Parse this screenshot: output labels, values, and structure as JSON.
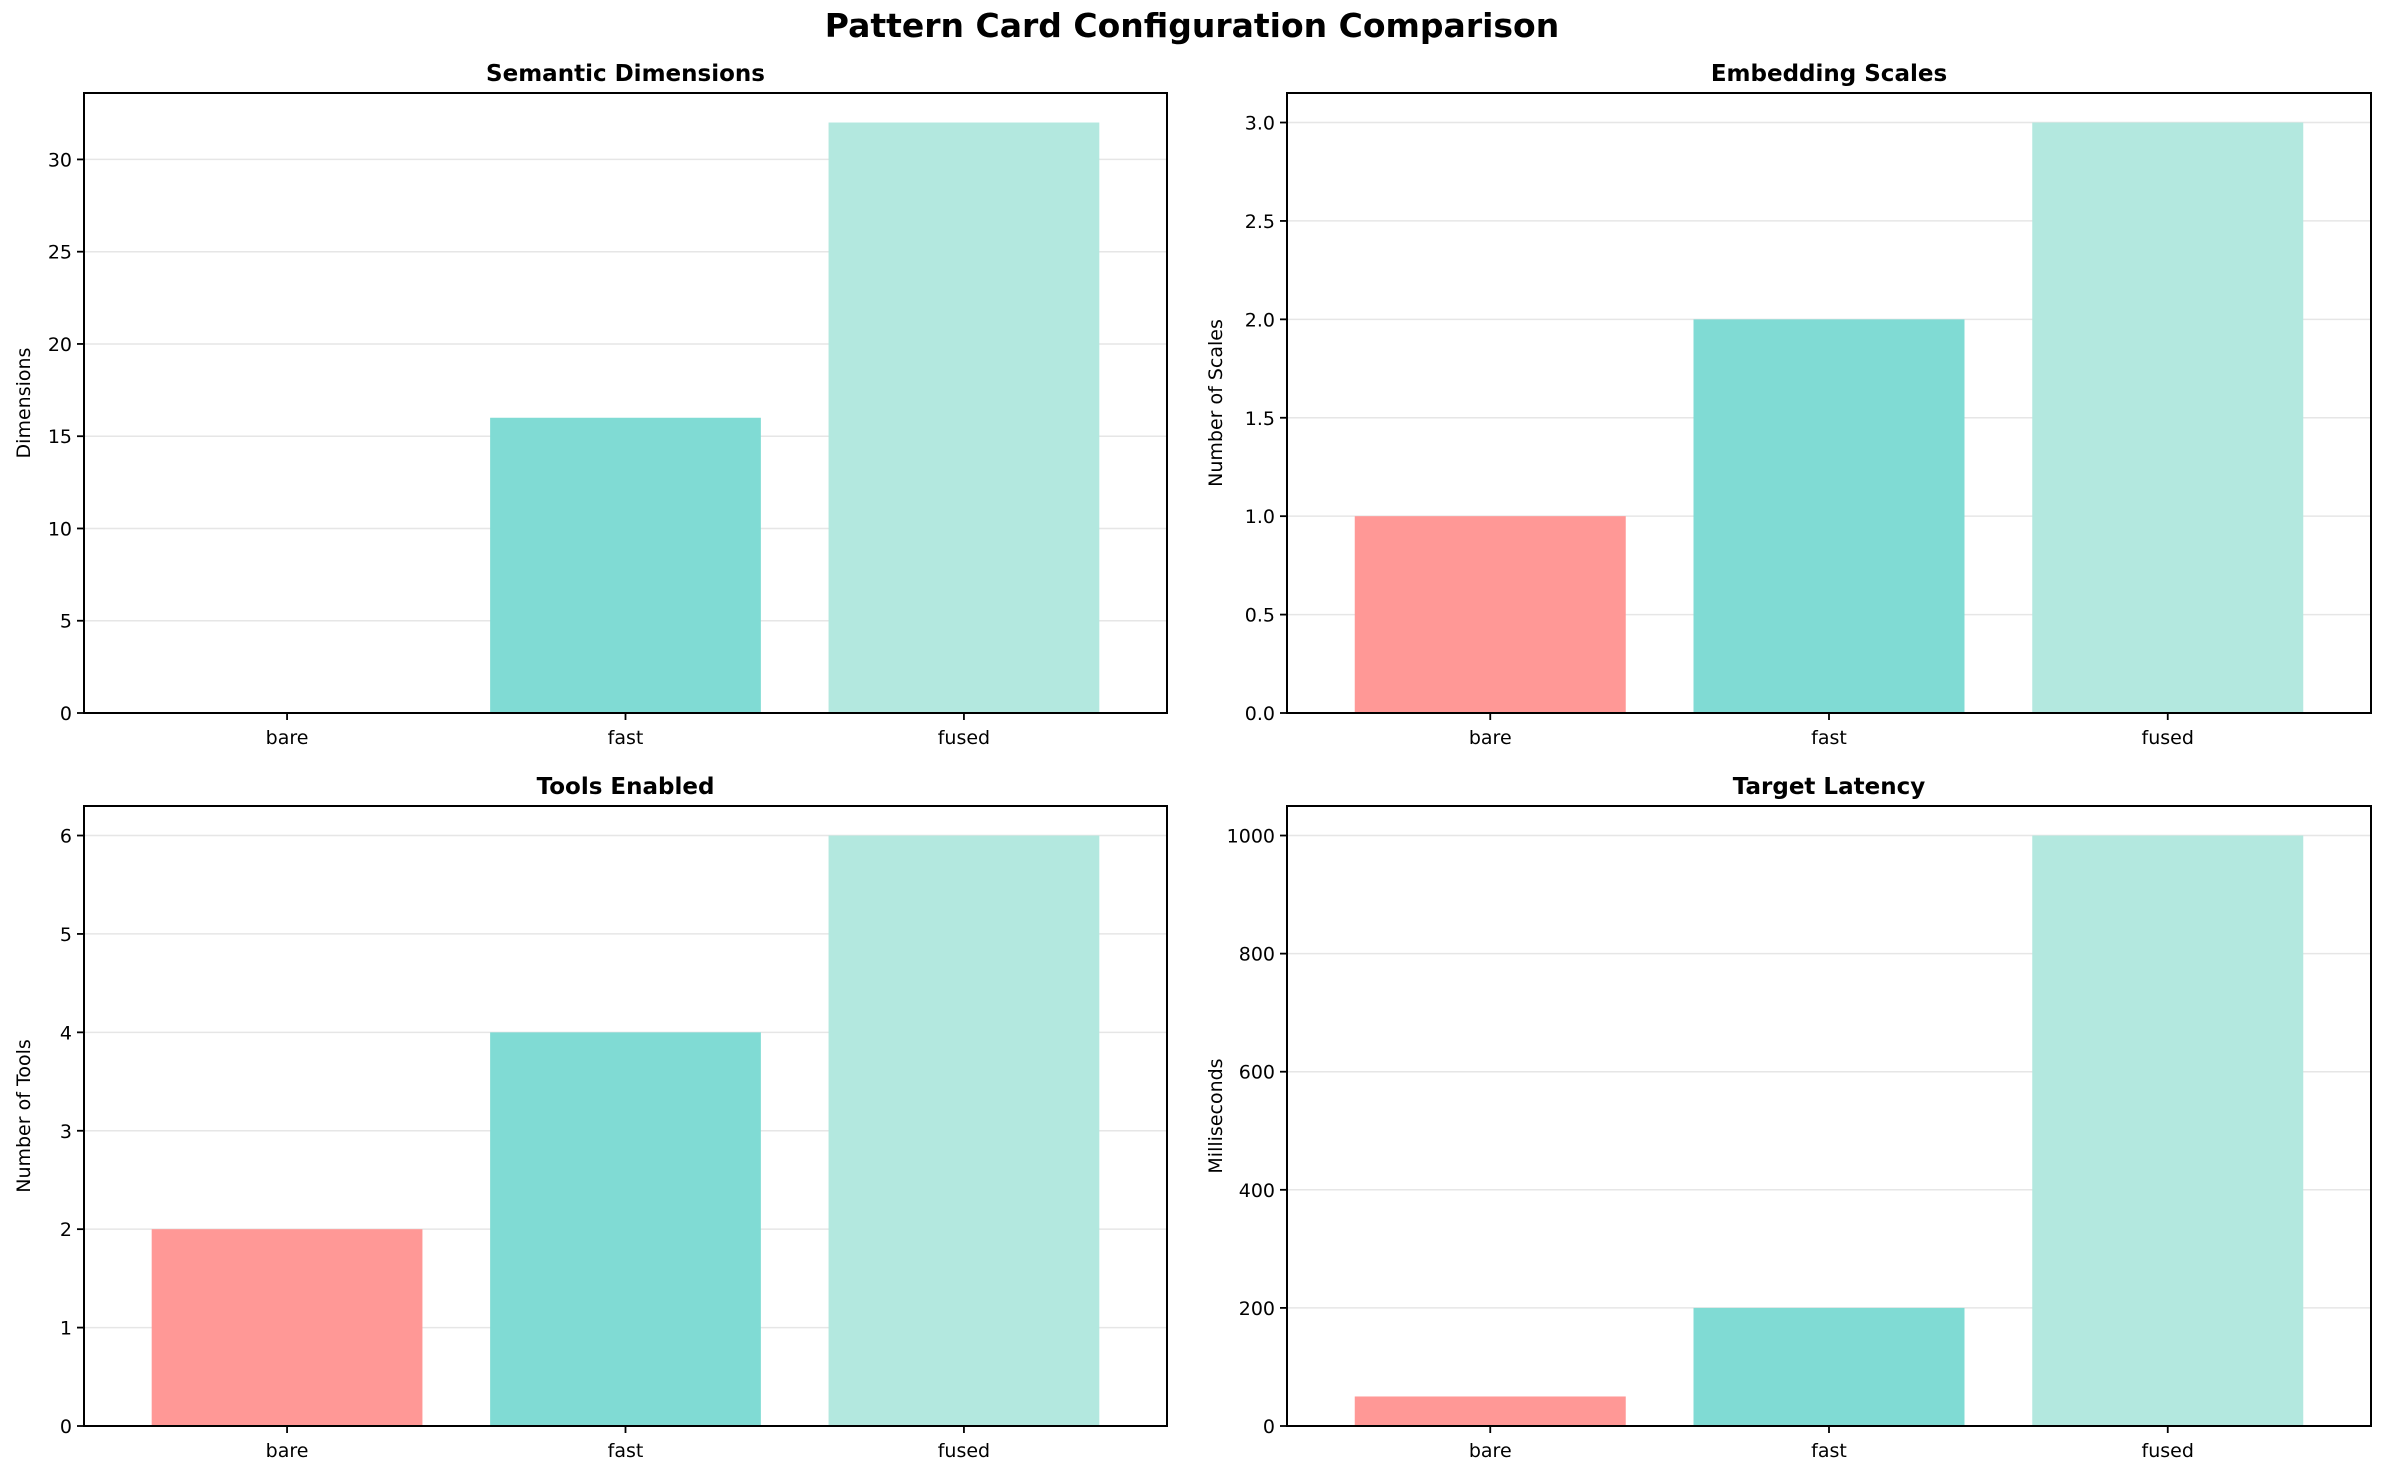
{
  "suptitle": "Pattern Card Configuration Comparison",
  "colors": {
    "bare": "#ff9896",
    "fast": "#80dbd4",
    "fused": "#b3e8df",
    "grid": "#e6e6e6",
    "axis": "#000000"
  },
  "chart_data": [
    {
      "type": "bar",
      "title": "Semantic Dimensions",
      "ylabel": "Dimensions",
      "categories": [
        "bare",
        "fast",
        "fused"
      ],
      "values": [
        0,
        16,
        32
      ],
      "ylim": [
        0,
        33.6
      ],
      "yticks": [
        0,
        5,
        10,
        15,
        20,
        25,
        30
      ],
      "ytick_labels": [
        "0",
        "5",
        "10",
        "15",
        "20",
        "25",
        "30"
      ],
      "grid": "y"
    },
    {
      "type": "bar",
      "title": "Embedding Scales",
      "ylabel": "Number of Scales",
      "categories": [
        "bare",
        "fast",
        "fused"
      ],
      "values": [
        1,
        2,
        3
      ],
      "ylim": [
        0,
        3.15
      ],
      "yticks": [
        0,
        0.5,
        1,
        1.5,
        2,
        2.5,
        3
      ],
      "ytick_labels": [
        "0.0",
        "0.5",
        "1.0",
        "1.5",
        "2.0",
        "2.5",
        "3.0"
      ],
      "grid": "y"
    },
    {
      "type": "bar",
      "title": "Tools Enabled",
      "ylabel": "Number of Tools",
      "categories": [
        "bare",
        "fast",
        "fused"
      ],
      "values": [
        2,
        4,
        6
      ],
      "ylim": [
        0,
        6.3
      ],
      "yticks": [
        0,
        1,
        2,
        3,
        4,
        5,
        6
      ],
      "ytick_labels": [
        "0",
        "1",
        "2",
        "3",
        "4",
        "5",
        "6"
      ],
      "grid": "y"
    },
    {
      "type": "bar",
      "title": "Target Latency",
      "ylabel": "Milliseconds",
      "categories": [
        "bare",
        "fast",
        "fused"
      ],
      "values": [
        50,
        200,
        1000
      ],
      "ylim": [
        0,
        1050
      ],
      "yticks": [
        0,
        200,
        400,
        600,
        800,
        1000
      ],
      "ytick_labels": [
        "0",
        "200",
        "400",
        "600",
        "800",
        "1000"
      ],
      "grid": "y"
    }
  ]
}
